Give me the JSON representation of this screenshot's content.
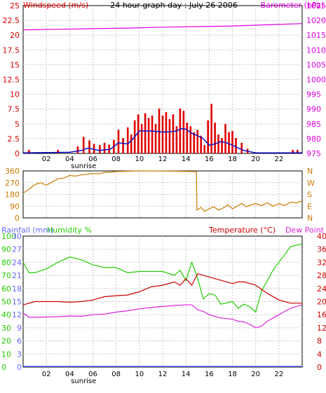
{
  "title": "24 hour graph day : July 26 2006",
  "colors": {
    "wind_red": "#e00000",
    "wind_blue": "#0000cc",
    "barometer": "#e000e0",
    "direction": "#cc7a00",
    "rainfall": "#6666ff",
    "humidity": "#22cc00",
    "temperature": "#cc0000",
    "dewpoint": "#dd22dd",
    "grid": "#c8c8c8"
  },
  "chart_data": [
    {
      "type": "line",
      "name": "wind-barometer",
      "left_label": "Windspeed (m/s)",
      "right_label": "Barometer (hPa)",
      "x_ticks": [
        "02",
        "04",
        "06",
        "08",
        "10",
        "12",
        "14",
        "16",
        "18",
        "20",
        "22"
      ],
      "x_ticks_hours": [
        2,
        4,
        6,
        8,
        10,
        12,
        14,
        16,
        18,
        20,
        22
      ],
      "sunrise_label": "sunrise",
      "sunrise_hour": 5.2,
      "xlim": [
        0,
        24
      ],
      "y_left_ticks": [
        "0",
        "2.5",
        "5",
        "7.5",
        "10",
        "12.5",
        "15",
        "17.5",
        "20",
        "22.5",
        "25"
      ],
      "y_left_range": [
        0,
        25
      ],
      "y_right_ticks": [
        "975",
        "980",
        "985",
        "990",
        "995",
        "1000",
        "1005",
        "1010",
        "1015",
        "1020",
        "1025"
      ],
      "y_right_range": [
        975,
        1025
      ],
      "series": [
        {
          "role": "gust",
          "color_key": "wind_red",
          "style": "bars",
          "x": [
            0.5,
            3.0,
            4.7,
            5.2,
            5.7,
            6.1,
            6.6,
            7.0,
            7.4,
            7.8,
            8.2,
            8.6,
            9.0,
            9.3,
            9.6,
            9.9,
            10.2,
            10.5,
            10.8,
            11.1,
            11.4,
            11.7,
            12.0,
            12.3,
            12.6,
            12.9,
            13.2,
            13.5,
            13.8,
            14.1,
            14.4,
            14.7,
            15.0,
            15.3,
            15.6,
            15.9,
            16.2,
            16.5,
            16.8,
            17.1,
            17.4,
            17.7,
            18.0,
            18.3,
            18.8,
            19.3,
            23.2,
            23.6
          ],
          "y": [
            0.6,
            0.6,
            1.2,
            2.8,
            2.2,
            1.6,
            1.4,
            1.8,
            1.5,
            2.3,
            4.0,
            2.6,
            4.4,
            3.2,
            5.6,
            6.6,
            5.0,
            6.8,
            6.0,
            6.4,
            5.0,
            7.6,
            6.4,
            7.0,
            5.8,
            6.6,
            4.6,
            7.6,
            7.2,
            5.2,
            4.6,
            3.6,
            4.0,
            3.0,
            1.4,
            5.6,
            8.4,
            5.2,
            3.2,
            2.6,
            5.0,
            3.6,
            3.8,
            2.6,
            1.8,
            0.8,
            0.6,
            0.6
          ]
        },
        {
          "role": "average",
          "color_key": "wind_blue",
          "style": "line",
          "x": [
            0,
            4,
            5,
            5.6,
            6.5,
            7.5,
            8.2,
            9.0,
            9.5,
            10.0,
            11.0,
            12.0,
            12.8,
            13.2,
            13.6,
            14.0,
            14.5,
            15.0,
            15.5,
            16.0,
            16.5,
            17.0,
            17.5,
            18.0,
            18.5,
            19.0,
            19.5,
            20.0,
            21.0,
            23.0,
            24.0
          ],
          "y": [
            0.1,
            0.2,
            0.5,
            0.9,
            0.5,
            0.7,
            1.8,
            1.6,
            2.6,
            3.8,
            3.8,
            3.6,
            3.7,
            3.8,
            4.2,
            4.1,
            3.4,
            3.0,
            2.5,
            1.4,
            1.6,
            2.0,
            1.8,
            1.4,
            0.9,
            0.5,
            0.3,
            0.1,
            0.1,
            0.1,
            0.1
          ]
        },
        {
          "role": "barometer",
          "color_key": "barometer",
          "style": "line",
          "axis": "right",
          "x": [
            0,
            3,
            6,
            9,
            12,
            15,
            18,
            21,
            24
          ],
          "y": [
            1016.8,
            1017.0,
            1017.2,
            1017.4,
            1017.7,
            1017.9,
            1018.1,
            1018.5,
            1018.9
          ]
        }
      ]
    },
    {
      "type": "line",
      "name": "wind-direction",
      "y_left_ticks": [
        "0",
        "90",
        "180",
        "270",
        "360"
      ],
      "y_left_range": [
        0,
        360
      ],
      "y_right_ticks": [
        "N",
        "E",
        "S",
        "W",
        "N"
      ],
      "series": [
        {
          "role": "direction",
          "color_key": "direction",
          "style": "line",
          "x": [
            0,
            0.5,
            1.0,
            1.5,
            2.0,
            2.5,
            3.0,
            3.5,
            4.0,
            4.5,
            5.0,
            5.5,
            6.0,
            6.5,
            7.0,
            7.5,
            8.0,
            9.0,
            10.0,
            11.0,
            12.0,
            13.0,
            14.0,
            14.9,
            14.95,
            15.3,
            15.6,
            16.0,
            16.4,
            16.8,
            17.2,
            17.6,
            18.0,
            18.4,
            18.8,
            19.2,
            19.6,
            20.0,
            20.5,
            21.0,
            21.5,
            22.0,
            22.5,
            23.0,
            23.5,
            24.0
          ],
          "y": [
            190,
            220,
            255,
            270,
            250,
            275,
            300,
            305,
            325,
            320,
            330,
            335,
            340,
            338,
            348,
            350,
            355,
            358,
            360,
            360,
            359,
            358,
            356,
            355,
            60,
            80,
            50,
            70,
            85,
            60,
            75,
            100,
            70,
            90,
            110,
            85,
            100,
            110,
            95,
            115,
            90,
            110,
            95,
            120,
            115,
            130
          ]
        }
      ]
    },
    {
      "type": "line",
      "name": "rain-humidity-temp",
      "labels": {
        "rainfall": "Rainfall (mm)",
        "humidity": "Humidity %",
        "temperature": "Temperature (°C)",
        "dewpoint": "Dew Point"
      },
      "y_rain_ticks": [
        "0",
        "3",
        "6",
        "9",
        "12",
        "15",
        "18",
        "21",
        "24",
        "27",
        "30"
      ],
      "y_rain_range": [
        0,
        30
      ],
      "y_humidity_ticks": [
        "0",
        "10",
        "20",
        "30",
        "40",
        "50",
        "60",
        "70",
        "80",
        "90",
        "100"
      ],
      "y_humidity_range": [
        0,
        100
      ],
      "y_right_ticks": [
        "0",
        "4",
        "8",
        "12",
        "16",
        "20",
        "24",
        "28",
        "32",
        "36",
        "40"
      ],
      "y_right_range": [
        0,
        40
      ],
      "series": [
        {
          "role": "humidity",
          "color_key": "humidity",
          "axis": "humidity",
          "x": [
            0,
            0.5,
            1.0,
            2.0,
            3.0,
            4.0,
            5.0,
            6.0,
            7.0,
            8.0,
            9.0,
            10.0,
            11.0,
            12.0,
            13.0,
            13.5,
            14.0,
            14.5,
            15.0,
            15.5,
            16.0,
            16.5,
            17.0,
            17.5,
            18.0,
            18.5,
            19.0,
            19.5,
            20.0,
            20.5,
            21.0,
            21.5,
            22.0,
            22.5,
            23.0,
            24.0
          ],
          "y": [
            80,
            72,
            72,
            75,
            80,
            84,
            82,
            78,
            76,
            76,
            72,
            73,
            73,
            73,
            70,
            74,
            66,
            80,
            68,
            52,
            56,
            55,
            48,
            49,
            50,
            45,
            48,
            46,
            42,
            58,
            66,
            74,
            80,
            86,
            92,
            94
          ]
        },
        {
          "role": "temperature",
          "color_key": "temperature",
          "axis": "right",
          "x": [
            0,
            1,
            2,
            3,
            4,
            5,
            6,
            7,
            8,
            9,
            10,
            11,
            12,
            13,
            13.5,
            14.0,
            14.5,
            15.0,
            15.5,
            16.0,
            16.5,
            17.0,
            17.5,
            18.0,
            18.5,
            19.0,
            19.5,
            20.0,
            21.0,
            22.0,
            23.0,
            24.0
          ],
          "y": [
            19.0,
            20.0,
            20.0,
            20.0,
            19.8,
            20.0,
            20.5,
            21.5,
            21.8,
            22.0,
            23.0,
            24.5,
            25.0,
            26.0,
            25.0,
            27.0,
            25.0,
            28.5,
            28.0,
            27.5,
            27.0,
            26.5,
            26.0,
            25.5,
            26.0,
            26.0,
            25.5,
            25.0,
            22.5,
            20.5,
            19.5,
            19.5
          ]
        },
        {
          "role": "dewpoint",
          "color_key": "dewpoint",
          "axis": "right",
          "x": [
            0,
            0.5,
            1,
            2,
            3,
            4,
            5,
            6,
            7,
            8,
            9,
            10,
            11,
            12,
            13,
            14,
            14.5,
            15.0,
            15.5,
            16.0,
            16.5,
            17.0,
            17.5,
            18.0,
            18.5,
            19.0,
            19.5,
            20.0,
            20.5,
            21.0,
            22.0,
            23.0,
            24.0
          ],
          "y": [
            16.5,
            15.2,
            15.2,
            15.3,
            15.4,
            15.6,
            15.5,
            16.0,
            16.2,
            16.8,
            17.2,
            17.8,
            18.2,
            18.5,
            18.8,
            19.0,
            19.0,
            17.5,
            17.0,
            16.0,
            15.5,
            15.0,
            14.8,
            14.6,
            14.0,
            13.8,
            13.0,
            12.0,
            12.5,
            14.0,
            16.0,
            18.0,
            19.0
          ]
        },
        {
          "role": "rainfall",
          "color_key": "rainfall",
          "axis": "rain",
          "x": [
            0,
            24
          ],
          "y": [
            0,
            0
          ]
        }
      ]
    }
  ]
}
